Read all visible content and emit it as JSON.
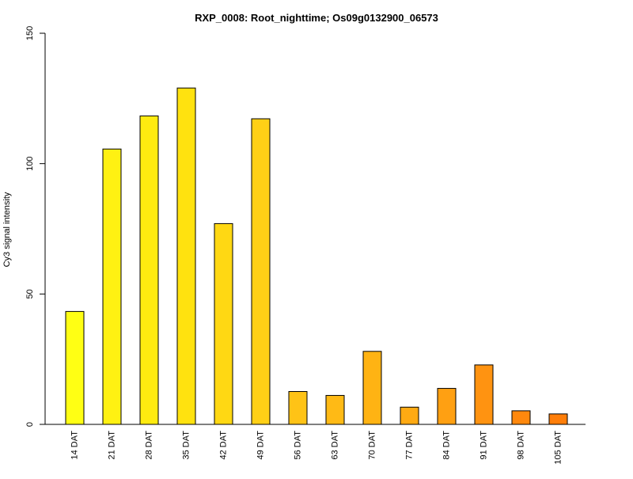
{
  "chart_data": {
    "type": "bar",
    "title": "RXP_0008: Root_nighttime; Os09g0132900_06573",
    "xlabel": "",
    "ylabel": "Cy3 signal intensity",
    "ylim": [
      0,
      150
    ],
    "yticks": [
      0,
      50,
      100,
      150
    ],
    "categories": [
      "14 DAT",
      "21 DAT",
      "28 DAT",
      "35 DAT",
      "42 DAT",
      "49 DAT",
      "56 DAT",
      "63 DAT",
      "70 DAT",
      "77 DAT",
      "84 DAT",
      "91 DAT",
      "98 DAT",
      "105 DAT"
    ],
    "values": [
      43.3,
      105.6,
      118.3,
      129.0,
      77.0,
      117.2,
      12.6,
      11.1,
      28.0,
      6.6,
      13.8,
      22.8,
      5.2,
      4.0
    ],
    "bar_colors": [
      "#FFFF14",
      "#FFF112",
      "#FFEB10",
      "#FFE20F",
      "#FFD813",
      "#FFD016",
      "#FFC316",
      "#FFBA15",
      "#FFB313",
      "#FFAA13",
      "#FFA012",
      "#FF9311",
      "#FF880D",
      "#FF7E09"
    ],
    "grid": false,
    "legend": "none"
  }
}
